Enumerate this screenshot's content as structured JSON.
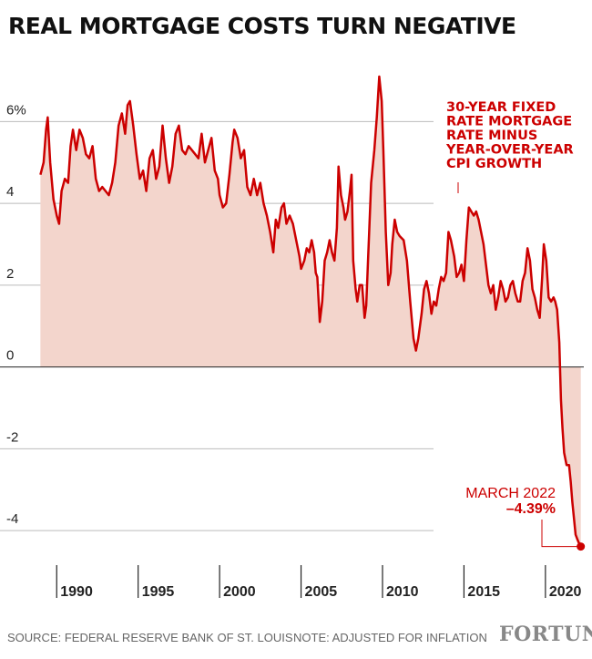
{
  "title": "REAL MORTGAGE COSTS TURN NEGATIVE",
  "footer": {
    "source": "SOURCE: FEDERAL RESERVE BANK OF ST. LOUIS",
    "note": "NOTE: ADJUSTED FOR INFLATION",
    "brand": "FORTUNE"
  },
  "colors": {
    "line": "#cc0000",
    "fill": "#f3d5cc",
    "grid": "#bbbbbb",
    "zero": "#222222"
  },
  "chart_data": {
    "type": "area",
    "title": "REAL MORTGAGE COSTS TURN NEGATIVE",
    "xlabel": "",
    "ylabel": "",
    "xlim": [
      1988.7,
      2022.3
    ],
    "ylim": [
      -4.6,
      7.3
    ],
    "grid": true,
    "x_ticks": [
      1990,
      1995,
      2000,
      2005,
      2010,
      2015,
      2020
    ],
    "y_ticks": [
      {
        "value": 6,
        "label": "6%"
      },
      {
        "value": 4,
        "label": "4"
      },
      {
        "value": 2,
        "label": "2"
      },
      {
        "value": 0,
        "label": "0"
      },
      {
        "value": -2,
        "label": "-2"
      },
      {
        "value": -4,
        "label": "-4"
      }
    ],
    "series": [
      {
        "values": [
          [
            1989.0,
            4.7
          ],
          [
            1989.2,
            5.0
          ],
          [
            1989.35,
            5.8
          ],
          [
            1989.45,
            6.1
          ],
          [
            1989.6,
            5.0
          ],
          [
            1989.8,
            4.1
          ],
          [
            1990.0,
            3.7
          ],
          [
            1990.15,
            3.5
          ],
          [
            1990.3,
            4.3
          ],
          [
            1990.5,
            4.6
          ],
          [
            1990.7,
            4.5
          ],
          [
            1990.85,
            5.4
          ],
          [
            1991.0,
            5.8
          ],
          [
            1991.2,
            5.3
          ],
          [
            1991.4,
            5.8
          ],
          [
            1991.6,
            5.6
          ],
          [
            1991.8,
            5.2
          ],
          [
            1992.0,
            5.1
          ],
          [
            1992.2,
            5.4
          ],
          [
            1992.4,
            4.6
          ],
          [
            1992.6,
            4.3
          ],
          [
            1992.8,
            4.4
          ],
          [
            1993.0,
            4.3
          ],
          [
            1993.2,
            4.2
          ],
          [
            1993.4,
            4.5
          ],
          [
            1993.6,
            5.0
          ],
          [
            1993.8,
            5.9
          ],
          [
            1994.0,
            6.2
          ],
          [
            1994.2,
            5.7
          ],
          [
            1994.35,
            6.4
          ],
          [
            1994.5,
            6.5
          ],
          [
            1994.7,
            5.9
          ],
          [
            1994.9,
            5.2
          ],
          [
            1995.1,
            4.6
          ],
          [
            1995.3,
            4.8
          ],
          [
            1995.5,
            4.3
          ],
          [
            1995.7,
            5.1
          ],
          [
            1995.9,
            5.3
          ],
          [
            1996.1,
            4.6
          ],
          [
            1996.3,
            4.9
          ],
          [
            1996.5,
            5.9
          ],
          [
            1996.7,
            5.1
          ],
          [
            1996.9,
            4.5
          ],
          [
            1997.1,
            4.9
          ],
          [
            1997.3,
            5.7
          ],
          [
            1997.5,
            5.9
          ],
          [
            1997.7,
            5.3
          ],
          [
            1997.9,
            5.2
          ],
          [
            1998.1,
            5.4
          ],
          [
            1998.3,
            5.3
          ],
          [
            1998.5,
            5.2
          ],
          [
            1998.7,
            5.1
          ],
          [
            1998.9,
            5.7
          ],
          [
            1999.1,
            5.0
          ],
          [
            1999.3,
            5.3
          ],
          [
            1999.5,
            5.6
          ],
          [
            1999.7,
            4.8
          ],
          [
            1999.9,
            4.6
          ],
          [
            2000.0,
            4.2
          ],
          [
            2000.2,
            3.9
          ],
          [
            2000.4,
            4.0
          ],
          [
            2000.6,
            4.7
          ],
          [
            2000.8,
            5.5
          ],
          [
            2000.9,
            5.8
          ],
          [
            2001.1,
            5.6
          ],
          [
            2001.3,
            5.1
          ],
          [
            2001.5,
            5.3
          ],
          [
            2001.7,
            4.4
          ],
          [
            2001.9,
            4.2
          ],
          [
            2002.1,
            4.6
          ],
          [
            2002.3,
            4.2
          ],
          [
            2002.5,
            4.5
          ],
          [
            2002.7,
            4.0
          ],
          [
            2002.9,
            3.7
          ],
          [
            2003.1,
            3.3
          ],
          [
            2003.3,
            2.8
          ],
          [
            2003.45,
            3.6
          ],
          [
            2003.6,
            3.4
          ],
          [
            2003.8,
            3.9
          ],
          [
            2003.95,
            4.0
          ],
          [
            2004.1,
            3.5
          ],
          [
            2004.3,
            3.7
          ],
          [
            2004.5,
            3.5
          ],
          [
            2004.7,
            3.1
          ],
          [
            2004.9,
            2.7
          ],
          [
            2005.0,
            2.4
          ],
          [
            2005.2,
            2.6
          ],
          [
            2005.35,
            2.9
          ],
          [
            2005.5,
            2.8
          ],
          [
            2005.65,
            3.1
          ],
          [
            2005.8,
            2.8
          ],
          [
            2005.9,
            2.3
          ],
          [
            2006.0,
            2.2
          ],
          [
            2006.15,
            1.1
          ],
          [
            2006.3,
            1.6
          ],
          [
            2006.45,
            2.6
          ],
          [
            2006.6,
            2.8
          ],
          [
            2006.75,
            3.1
          ],
          [
            2006.9,
            2.8
          ],
          [
            2007.05,
            2.6
          ],
          [
            2007.2,
            3.4
          ],
          [
            2007.3,
            4.9
          ],
          [
            2007.45,
            4.2
          ],
          [
            2007.6,
            3.9
          ],
          [
            2007.7,
            3.6
          ],
          [
            2007.85,
            3.8
          ],
          [
            2008.0,
            4.3
          ],
          [
            2008.1,
            4.7
          ],
          [
            2008.2,
            2.6
          ],
          [
            2008.35,
            1.9
          ],
          [
            2008.45,
            1.6
          ],
          [
            2008.6,
            2.0
          ],
          [
            2008.75,
            2.0
          ],
          [
            2008.9,
            1.2
          ],
          [
            2009.0,
            1.5
          ],
          [
            2009.1,
            2.5
          ],
          [
            2009.3,
            4.5
          ],
          [
            2009.5,
            5.3
          ],
          [
            2009.65,
            6.1
          ],
          [
            2009.8,
            7.1
          ],
          [
            2009.95,
            6.5
          ],
          [
            2010.05,
            5.3
          ],
          [
            2010.2,
            3.3
          ],
          [
            2010.35,
            2.0
          ],
          [
            2010.5,
            2.3
          ],
          [
            2010.6,
            3.0
          ],
          [
            2010.75,
            3.6
          ],
          [
            2010.9,
            3.3
          ],
          [
            2011.05,
            3.2
          ],
          [
            2011.3,
            3.1
          ],
          [
            2011.5,
            2.6
          ],
          [
            2011.7,
            1.6
          ],
          [
            2011.9,
            0.7
          ],
          [
            2012.05,
            0.4
          ],
          [
            2012.2,
            0.7
          ],
          [
            2012.4,
            1.3
          ],
          [
            2012.55,
            1.9
          ],
          [
            2012.7,
            2.1
          ],
          [
            2012.85,
            1.8
          ],
          [
            2013.0,
            1.3
          ],
          [
            2013.15,
            1.6
          ],
          [
            2013.3,
            1.5
          ],
          [
            2013.45,
            1.9
          ],
          [
            2013.6,
            2.2
          ],
          [
            2013.75,
            2.1
          ],
          [
            2013.9,
            2.3
          ],
          [
            2014.05,
            3.3
          ],
          [
            2014.2,
            3.1
          ],
          [
            2014.4,
            2.7
          ],
          [
            2014.55,
            2.2
          ],
          [
            2014.7,
            2.3
          ],
          [
            2014.85,
            2.5
          ],
          [
            2015.0,
            2.1
          ],
          [
            2015.15,
            3.1
          ],
          [
            2015.3,
            3.9
          ],
          [
            2015.45,
            3.8
          ],
          [
            2015.6,
            3.7
          ],
          [
            2015.75,
            3.8
          ],
          [
            2015.9,
            3.6
          ],
          [
            2016.05,
            3.3
          ],
          [
            2016.2,
            3.0
          ],
          [
            2016.35,
            2.5
          ],
          [
            2016.5,
            2.0
          ],
          [
            2016.65,
            1.8
          ],
          [
            2016.8,
            2.0
          ],
          [
            2016.95,
            1.4
          ],
          [
            2017.1,
            1.7
          ],
          [
            2017.25,
            2.1
          ],
          [
            2017.4,
            1.9
          ],
          [
            2017.55,
            1.6
          ],
          [
            2017.7,
            1.7
          ],
          [
            2017.85,
            2.0
          ],
          [
            2018.0,
            2.1
          ],
          [
            2018.15,
            1.8
          ],
          [
            2018.3,
            1.6
          ],
          [
            2018.45,
            1.6
          ],
          [
            2018.6,
            2.1
          ],
          [
            2018.75,
            2.3
          ],
          [
            2018.9,
            2.9
          ],
          [
            2019.05,
            2.6
          ],
          [
            2019.2,
            1.9
          ],
          [
            2019.35,
            1.7
          ],
          [
            2019.5,
            1.4
          ],
          [
            2019.65,
            1.2
          ],
          [
            2019.8,
            2.2
          ],
          [
            2019.9,
            3.0
          ],
          [
            2020.05,
            2.6
          ],
          [
            2020.2,
            1.7
          ],
          [
            2020.35,
            1.6
          ],
          [
            2020.5,
            1.7
          ],
          [
            2020.6,
            1.6
          ],
          [
            2020.72,
            1.4
          ],
          [
            2020.85,
            0.6
          ],
          [
            2020.95,
            -0.8
          ],
          [
            2021.05,
            -1.5
          ],
          [
            2021.15,
            -2.1
          ],
          [
            2021.3,
            -2.4
          ],
          [
            2021.45,
            -2.4
          ],
          [
            2021.55,
            -2.8
          ],
          [
            2021.65,
            -3.3
          ],
          [
            2021.75,
            -3.7
          ],
          [
            2021.85,
            -4.1
          ],
          [
            2021.95,
            -4.2
          ],
          [
            2022.05,
            -4.3
          ],
          [
            2022.17,
            -4.39
          ]
        ]
      }
    ],
    "annotations": [
      {
        "lines": [
          "30-YEAR FIXED",
          "RATE MORTGAGE",
          "RATE MINUS",
          "YEAR-OVER-YEAR",
          "CPI GROWTH"
        ]
      },
      {
        "lines": [
          "MARCH 2022",
          "–4.39%"
        ]
      }
    ]
  }
}
